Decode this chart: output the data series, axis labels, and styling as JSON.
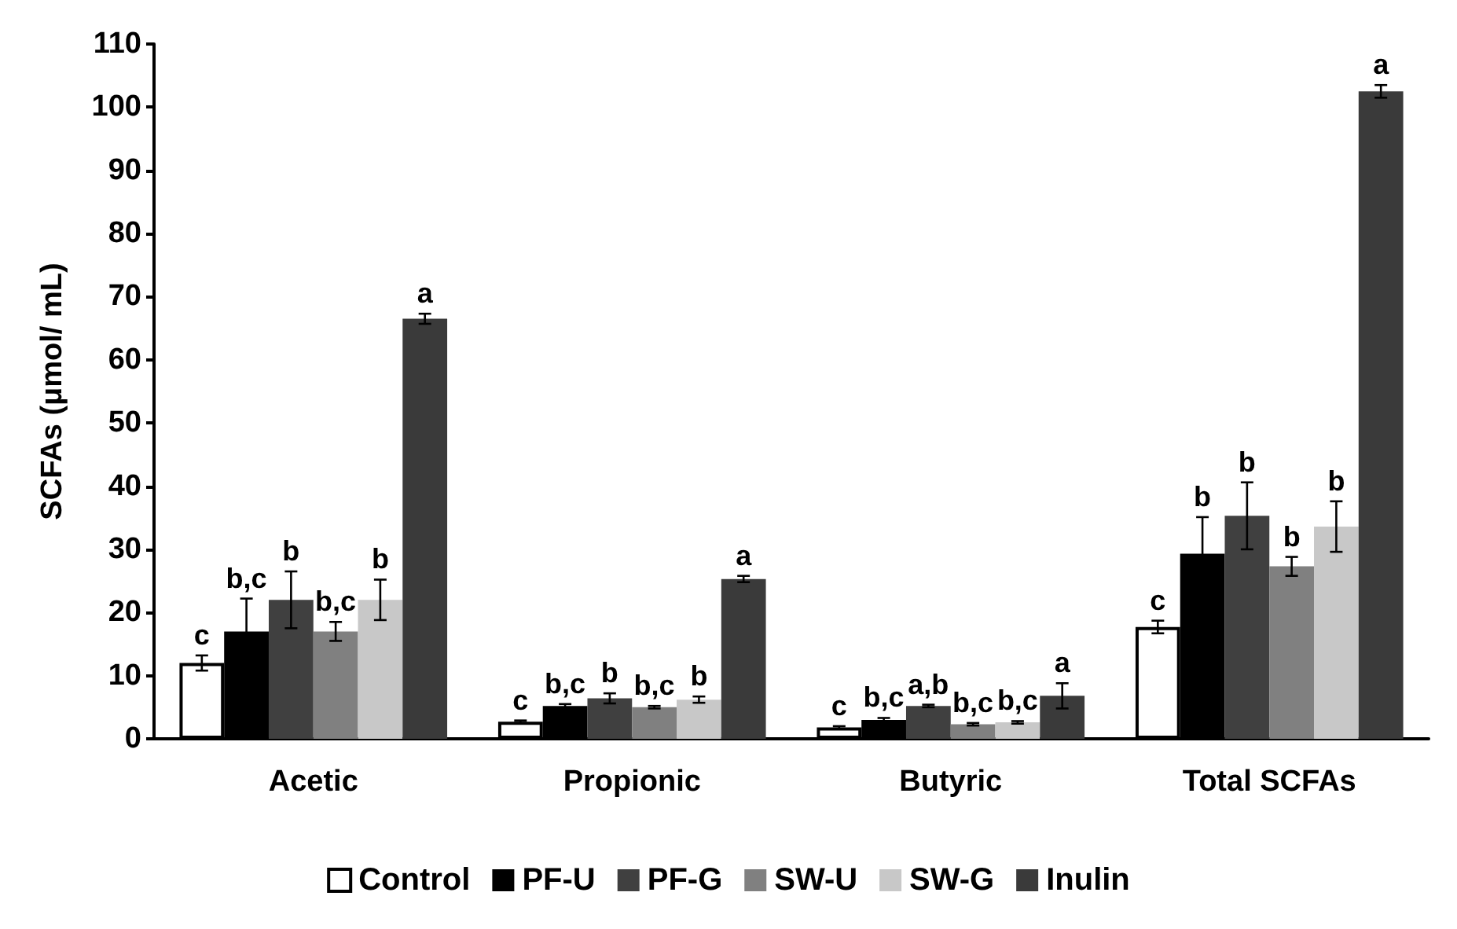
{
  "chart_data": {
    "type": "bar",
    "ylabel": "SCFAs (μmol/ mL)",
    "categories": [
      "Acetic",
      "Propionic",
      "Butyric",
      "Total SCFAs"
    ],
    "series": [
      {
        "name": "Control",
        "color": "#ffffff",
        "values": [
          12,
          2.7,
          1.8,
          17.7
        ],
        "errors": [
          1.2,
          0.2,
          0.2,
          1
        ],
        "value_labels": [
          "c",
          "c",
          "c",
          "c"
        ]
      },
      {
        "name": "PF-U",
        "color": "#000000",
        "values": [
          17,
          5.2,
          3,
          29.3
        ],
        "errors": [
          5.2,
          0.3,
          0.3,
          5.8
        ],
        "value_labels": [
          "b,c",
          "b,c",
          "b,c",
          "b"
        ]
      },
      {
        "name": "PF-G",
        "color": "#404040",
        "values": [
          22,
          6.4,
          5.2,
          35.3
        ],
        "errors": [
          4.5,
          0.8,
          0.2,
          5.3
        ],
        "value_labels": [
          "b",
          "b",
          "a,b",
          "b"
        ]
      },
      {
        "name": "SW-U",
        "color": "#808080",
        "values": [
          17,
          5,
          2.3,
          27.3
        ],
        "errors": [
          1.5,
          0.2,
          0.2,
          1.5
        ],
        "value_labels": [
          "b,c",
          "b,c",
          "b,c",
          "b"
        ]
      },
      {
        "name": "SW-G",
        "color": "#c8c8c8",
        "values": [
          22,
          6.2,
          2.6,
          33.6
        ],
        "errors": [
          3.2,
          0.5,
          0.2,
          4
        ],
        "value_labels": [
          "b",
          "b",
          "b,c",
          "b"
        ]
      },
      {
        "name": "Inulin",
        "color": "#3a3a3a",
        "values": [
          66.5,
          25.3,
          6.8,
          102.5
        ],
        "errors": [
          0.8,
          0.5,
          2,
          1
        ],
        "value_labels": [
          "a",
          "a",
          "a",
          "a"
        ]
      }
    ],
    "ylim": [
      0,
      110
    ],
    "yticks": [
      0,
      10,
      20,
      30,
      40,
      50,
      60,
      70,
      80,
      90,
      100,
      110
    ],
    "grid": false,
    "legend": "bottom"
  }
}
